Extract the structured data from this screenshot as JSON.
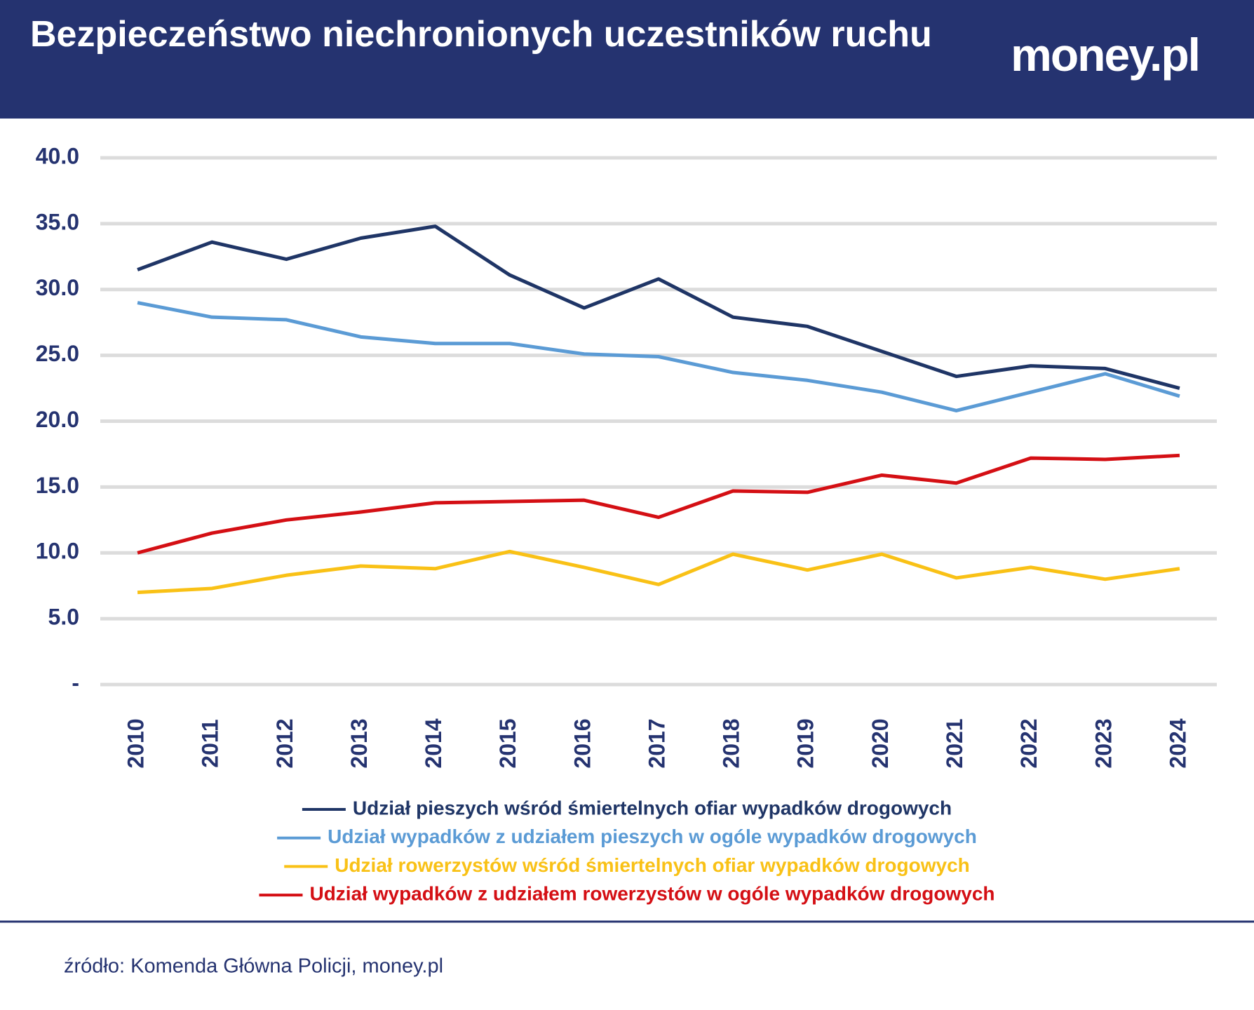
{
  "logo": "money.pl",
  "source": "źródło: Komenda Główna Policji, money.pl",
  "chart_data": {
    "type": "line",
    "title": "Bezpieczeństwo niechronionych uczestników ruchu",
    "categories": [
      "2010",
      "2011",
      "2012",
      "2013",
      "2014",
      "2015",
      "2016",
      "2017",
      "2018",
      "2019",
      "2020",
      "2021",
      "2022",
      "2023",
      "2024"
    ],
    "series": [
      {
        "name": "Udział pieszych wśród śmiertelnych ofiar wypadków drogowych",
        "color": "#1f3566",
        "values": [
          31.5,
          33.6,
          32.3,
          33.9,
          34.8,
          31.1,
          28.6,
          30.8,
          27.9,
          27.2,
          25.3,
          23.4,
          24.2,
          24.0,
          22.5
        ]
      },
      {
        "name": "Udział wypadków z udziałem pieszych w ogóle wypadków drogowych",
        "color": "#5b9bd5",
        "values": [
          29.0,
          27.9,
          27.7,
          26.4,
          25.9,
          25.9,
          25.1,
          24.9,
          23.7,
          23.1,
          22.2,
          20.8,
          22.2,
          23.6,
          21.9
        ]
      },
      {
        "name": "Udział rowerzystów wśród śmiertelnych ofiar wypadków drogowych",
        "color": "#f9c116",
        "values": [
          7.0,
          7.3,
          8.3,
          9.0,
          8.8,
          10.1,
          8.9,
          7.6,
          9.9,
          8.7,
          9.9,
          8.1,
          8.9,
          8.0,
          8.8
        ]
      },
      {
        "name": "Udział wypadków z udziałem rowerzystów w ogóle wypadków drogowych",
        "color": "#d40f14",
        "values": [
          10.0,
          11.5,
          12.5,
          13.1,
          13.8,
          13.9,
          14.0,
          12.7,
          14.7,
          14.6,
          15.9,
          15.3,
          17.2,
          17.1,
          17.4
        ]
      }
    ],
    "ylim": [
      0,
      40
    ],
    "yticks": [
      {
        "value": 0,
        "label": "-"
      },
      {
        "value": 5,
        "label": "5.0"
      },
      {
        "value": 10,
        "label": "10.0"
      },
      {
        "value": 15,
        "label": "15.0"
      },
      {
        "value": 20,
        "label": "20.0"
      },
      {
        "value": 25,
        "label": "25.0"
      },
      {
        "value": 30,
        "label": "30.0"
      },
      {
        "value": 35,
        "label": "35.0"
      },
      {
        "value": 40,
        "label": "40.0"
      }
    ],
    "grid": true
  }
}
